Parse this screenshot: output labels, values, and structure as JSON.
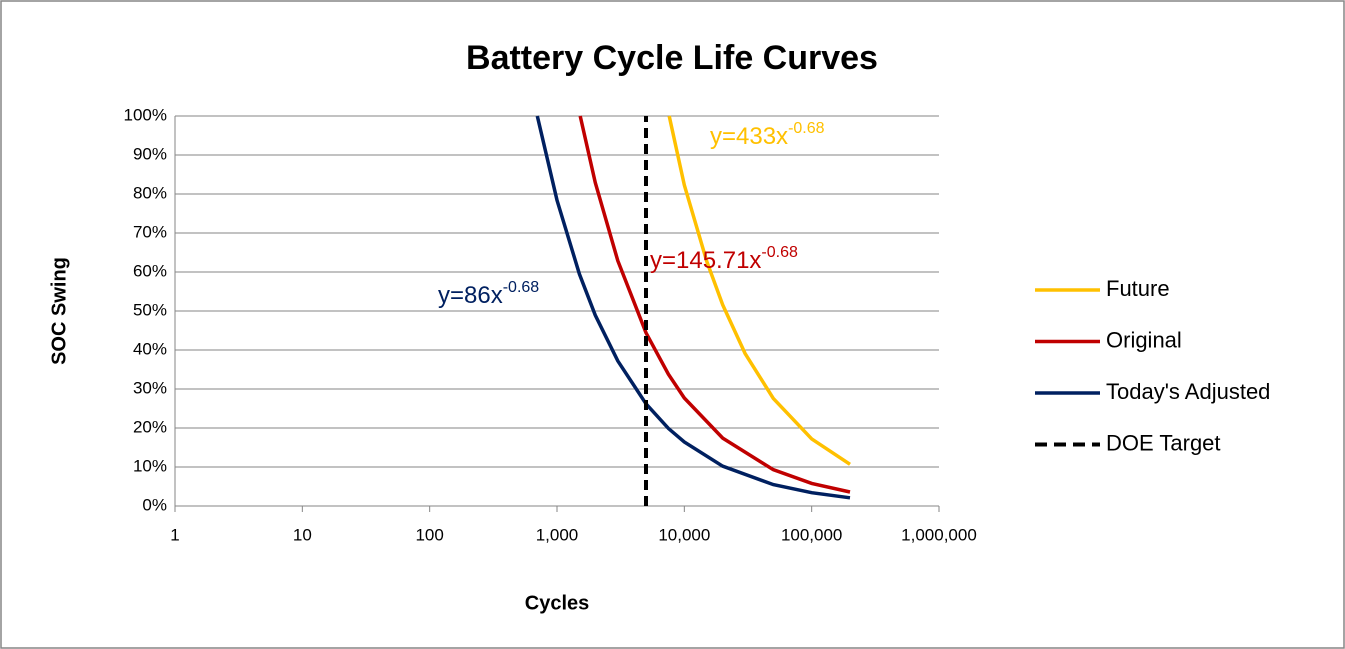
{
  "chart_data": {
    "type": "line",
    "title": "Battery Cycle Life Curves",
    "x_label": "Cycles",
    "y_label": "SOC Swing",
    "xscale": "log",
    "xlim": [
      1,
      1000000
    ],
    "xticks": [
      1,
      10,
      100,
      {
        "value": 1000,
        "label": "1,000"
      },
      {
        "value": 10000,
        "label": "10,000"
      },
      {
        "value": 100000,
        "label": "100,000"
      },
      {
        "value": 1000000,
        "label": "1,000,000"
      }
    ],
    "ylim": [
      0,
      100
    ],
    "yticks": [
      {
        "value": 0,
        "label": "0%"
      },
      {
        "value": 10,
        "label": "10%"
      },
      {
        "value": 20,
        "label": "20%"
      },
      {
        "value": 30,
        "label": "30%"
      },
      {
        "value": 40,
        "label": "40%"
      },
      {
        "value": 50,
        "label": "50%"
      },
      {
        "value": 60,
        "label": "60%"
      },
      {
        "value": 70,
        "label": "70%"
      },
      {
        "value": 80,
        "label": "80%"
      },
      {
        "value": 90,
        "label": "90%"
      },
      {
        "value": 100,
        "label": "100%"
      }
    ],
    "grid": true,
    "legend": "right",
    "series": [
      {
        "name": "Future",
        "color": "#ffc000",
        "dash": false,
        "x": [
          7600,
          10000,
          15000,
          20000,
          30000,
          50000,
          100000,
          200000
        ],
        "values": [
          100,
          82.3,
          62.7,
          51.6,
          39.1,
          27.6,
          17.2,
          10.7
        ]
      },
      {
        "name": "Original",
        "color": "#c00000",
        "dash": false,
        "x": [
          1520,
          2000,
          3000,
          5000,
          7500,
          10000,
          20000,
          50000,
          100000,
          200000
        ],
        "values": [
          100,
          82.9,
          62.9,
          44.4,
          33.8,
          27.7,
          17.4,
          9.3,
          5.8,
          3.6
        ]
      },
      {
        "name": "Today's Adjusted",
        "color": "#002060",
        "dash": false,
        "x": [
          700,
          1000,
          1500,
          2000,
          3000,
          5000,
          7500,
          10000,
          20000,
          50000,
          100000,
          200000
        ],
        "values": [
          100,
          78.4,
          59.5,
          48.9,
          37.2,
          26.2,
          19.9,
          16.4,
          10.2,
          5.5,
          3.4,
          2.1
        ]
      },
      {
        "name": "DOE Target",
        "color": "#000000",
        "dash": true,
        "x": [
          5000,
          5000
        ],
        "values": [
          0,
          100
        ]
      }
    ],
    "annotations": [
      {
        "text": "y=433x",
        "exponent": "-0.68",
        "color": "#ffc000"
      },
      {
        "text": "y=145.71x",
        "exponent": "-0.68",
        "color": "#c00000"
      },
      {
        "text": "y=86x",
        "exponent": "-0.68",
        "color": "#002060"
      }
    ]
  }
}
